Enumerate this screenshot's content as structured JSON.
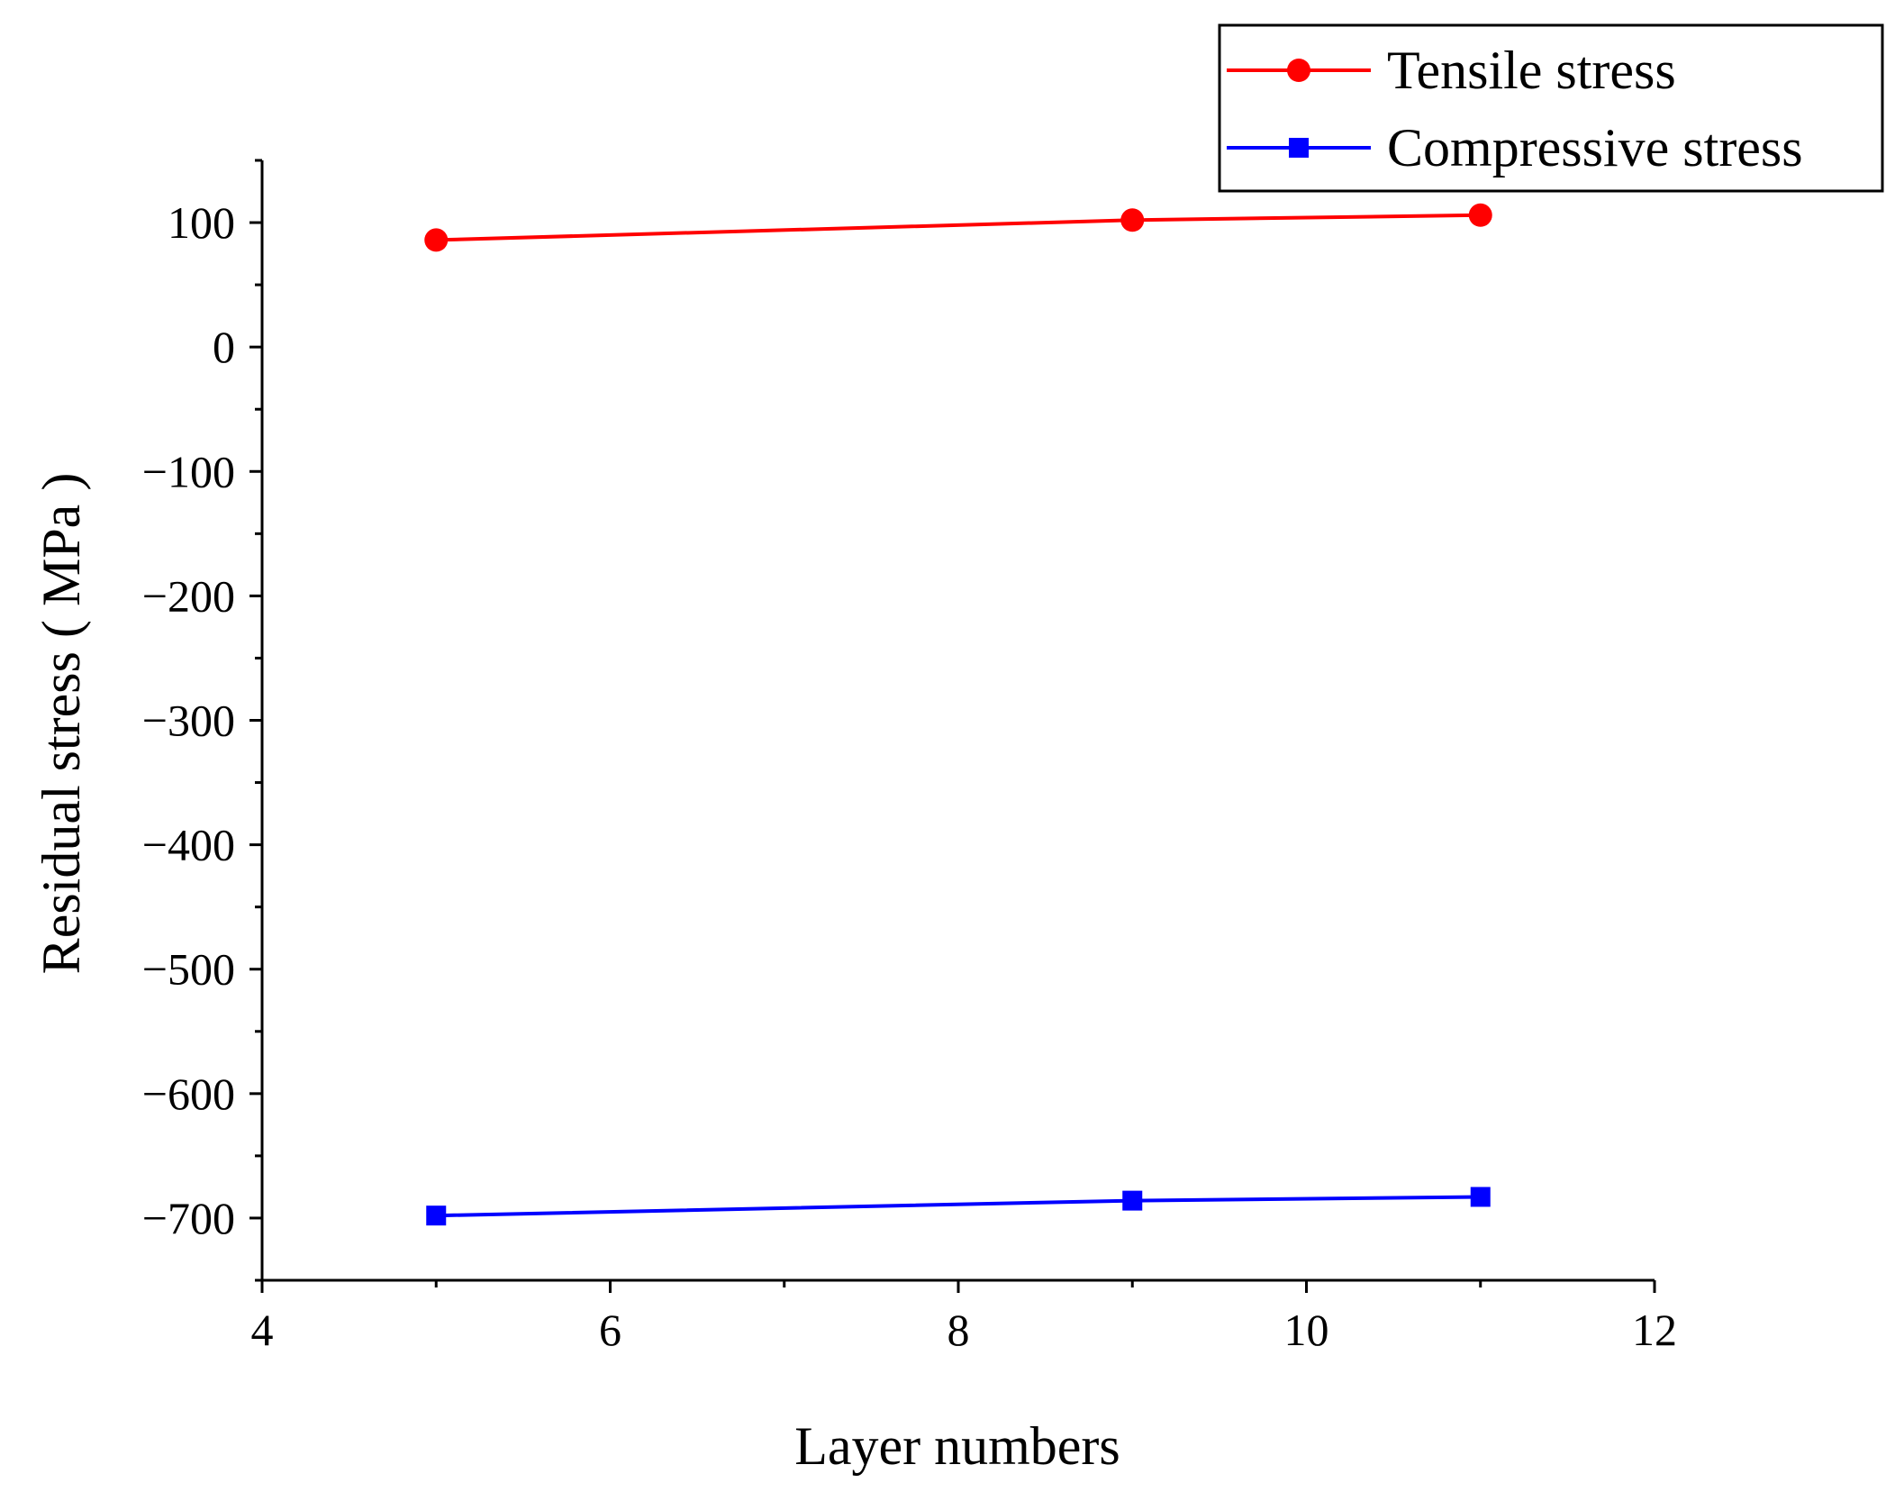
{
  "chart_data": {
    "type": "line",
    "title": "",
    "xlabel": "Layer numbers",
    "ylabel": "Residual stress ( MPa )",
    "xlim": [
      4,
      12
    ],
    "ylim": [
      -750,
      150
    ],
    "x_ticks": [
      4,
      6,
      8,
      10,
      12
    ],
    "x_tick_labels": [
      "4",
      "6",
      "8",
      "10",
      "12"
    ],
    "y_ticks": [
      100,
      0,
      -100,
      -200,
      -300,
      -400,
      -500,
      -600,
      -700
    ],
    "y_tick_labels": [
      "100",
      "0",
      "−100",
      "−200",
      "−300",
      "−400",
      "−500",
      "−600",
      "−700"
    ],
    "grid": false,
    "legend_position": "top-right",
    "series": [
      {
        "name": "Tensile stress",
        "color": "#ff0000",
        "marker": "circle",
        "x": [
          5,
          9,
          11
        ],
        "values": [
          86,
          102,
          106
        ]
      },
      {
        "name": "Compressive stress",
        "color": "#0000ff",
        "marker": "square",
        "x": [
          5,
          9,
          11
        ],
        "values": [
          -698,
          -686,
          -683
        ]
      }
    ]
  }
}
